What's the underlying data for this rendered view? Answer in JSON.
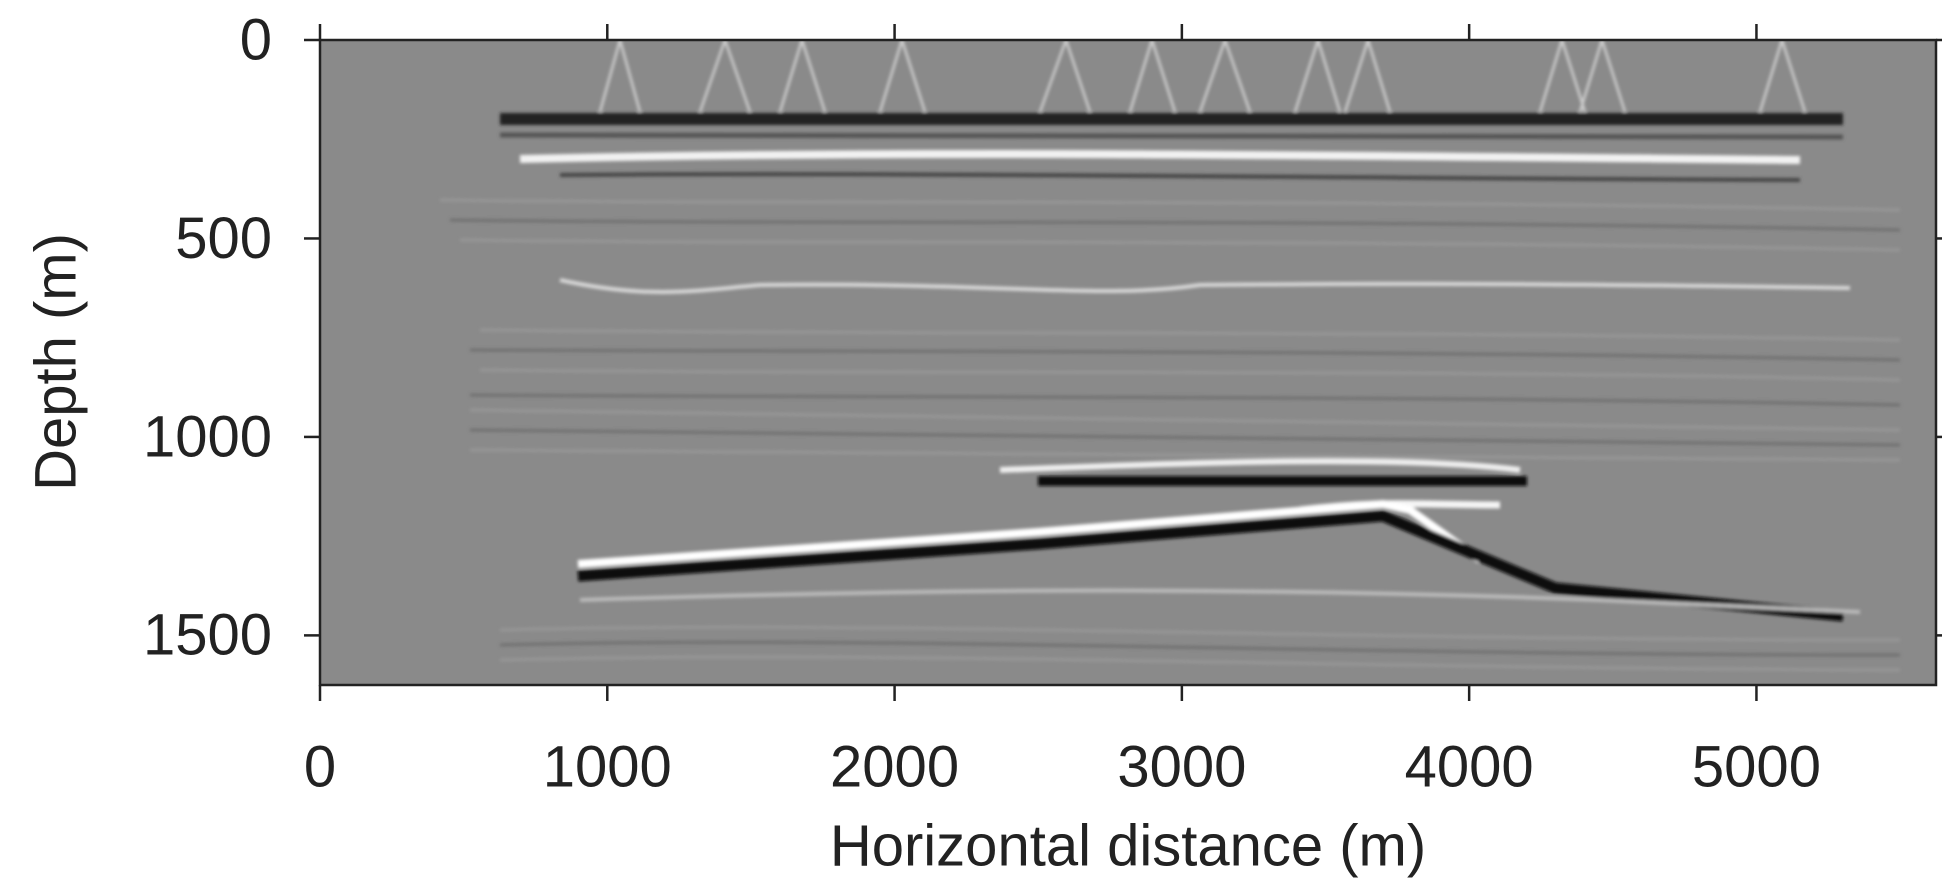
{
  "chart_data": {
    "type": "image",
    "x_label": "Horizontal distance (m)",
    "y_label": "Depth (m)",
    "xlim": [
      0,
      5625
    ],
    "ylim": [
      1625,
      0
    ],
    "xticks": [
      0,
      1000,
      2000,
      3000,
      4000,
      5000
    ],
    "yticks": [
      0,
      500,
      1000,
      1500
    ],
    "colormap": "gray"
  }
}
